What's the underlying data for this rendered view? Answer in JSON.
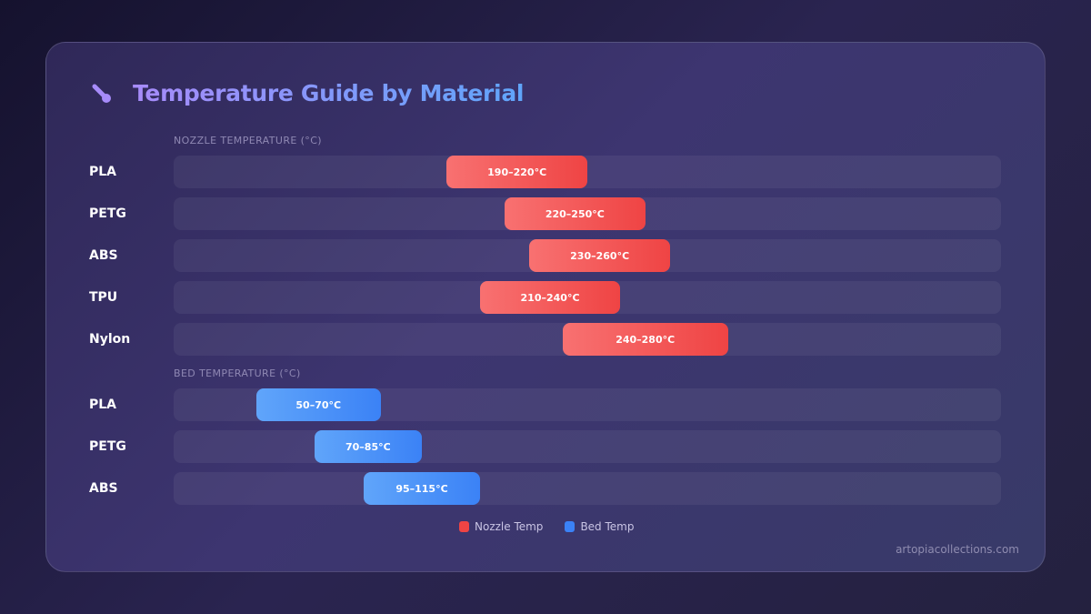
{
  "title": "Temperature Guide by Material",
  "icon": "thermometer-icon",
  "colors": {
    "nozzle_start": "#f87171",
    "nozzle_end": "#ef4444",
    "bed_start": "#60a5fa",
    "bed_end": "#3b82f6"
  },
  "chart_data": {
    "type": "bar",
    "sections": [
      {
        "label": "NOZZLE TEMPERATURE (°C)",
        "series": "Nozzle Temp",
        "rows": [
          {
            "material": "PLA",
            "min": 190,
            "max": 220,
            "label": "190–220°C"
          },
          {
            "material": "PETG",
            "min": 220,
            "max": 250,
            "label": "220–250°C"
          },
          {
            "material": "ABS",
            "min": 230,
            "max": 260,
            "label": "230–260°C"
          },
          {
            "material": "TPU",
            "min": 210,
            "max": 240,
            "label": "210–240°C"
          },
          {
            "material": "Nylon",
            "min": 240,
            "max": 280,
            "label": "240–280°C"
          }
        ]
      },
      {
        "label": "BED TEMPERATURE (°C)",
        "series": "Bed Temp",
        "rows": [
          {
            "material": "PLA",
            "min": 50,
            "max": 70,
            "label": "50–70°C"
          },
          {
            "material": "PETG",
            "min": 70,
            "max": 85,
            "label": "70–85°C"
          },
          {
            "material": "ABS",
            "min": 95,
            "max": 115,
            "label": "95–115°C"
          }
        ]
      }
    ],
    "legend": [
      {
        "name": "Nozzle Temp",
        "color": "#ef4444"
      },
      {
        "name": "Bed Temp",
        "color": "#3b82f6"
      }
    ],
    "legend_placement": "bottom-center"
  },
  "footer": "artopiacollections.com"
}
